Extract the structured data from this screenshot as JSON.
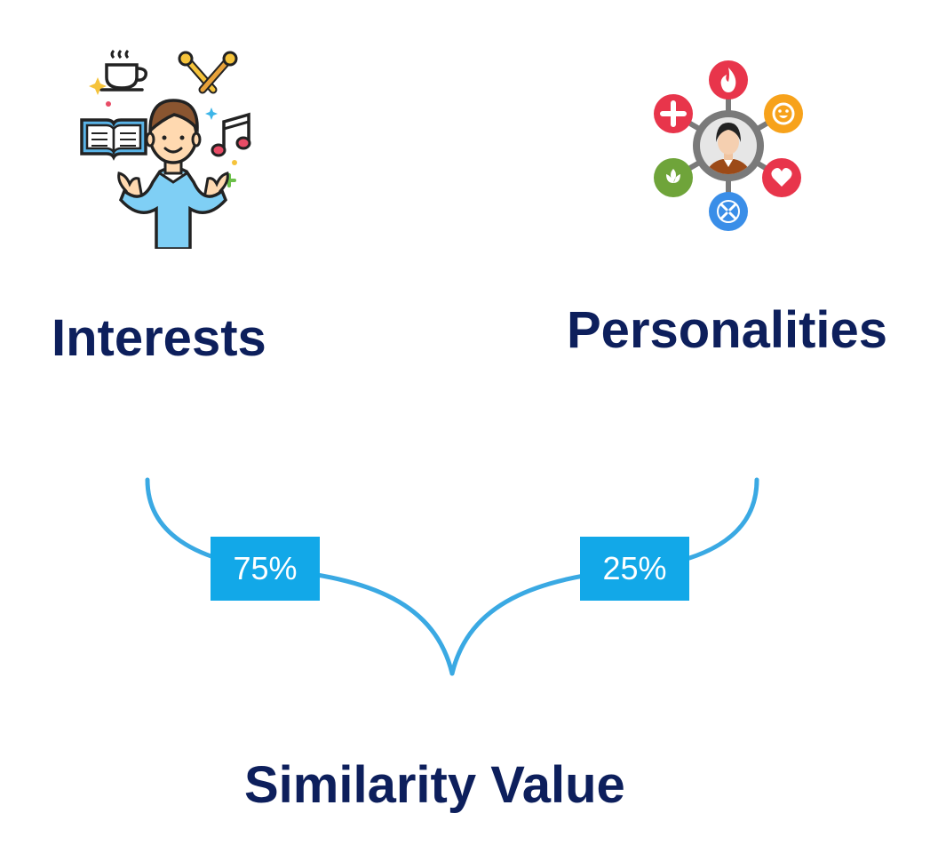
{
  "inputs": [
    {
      "label": "Interests",
      "icon": "person-with-hobbies-icon",
      "weight": "75%"
    },
    {
      "label": "Personalities",
      "icon": "personality-traits-network-icon",
      "weight": "25%"
    }
  ],
  "output": {
    "label": "Similarity Value"
  },
  "colors": {
    "heading": "#0d1f5c",
    "connector": "#3aa9e3",
    "weight_box": "#12a8e8",
    "weight_text": "#ffffff"
  }
}
